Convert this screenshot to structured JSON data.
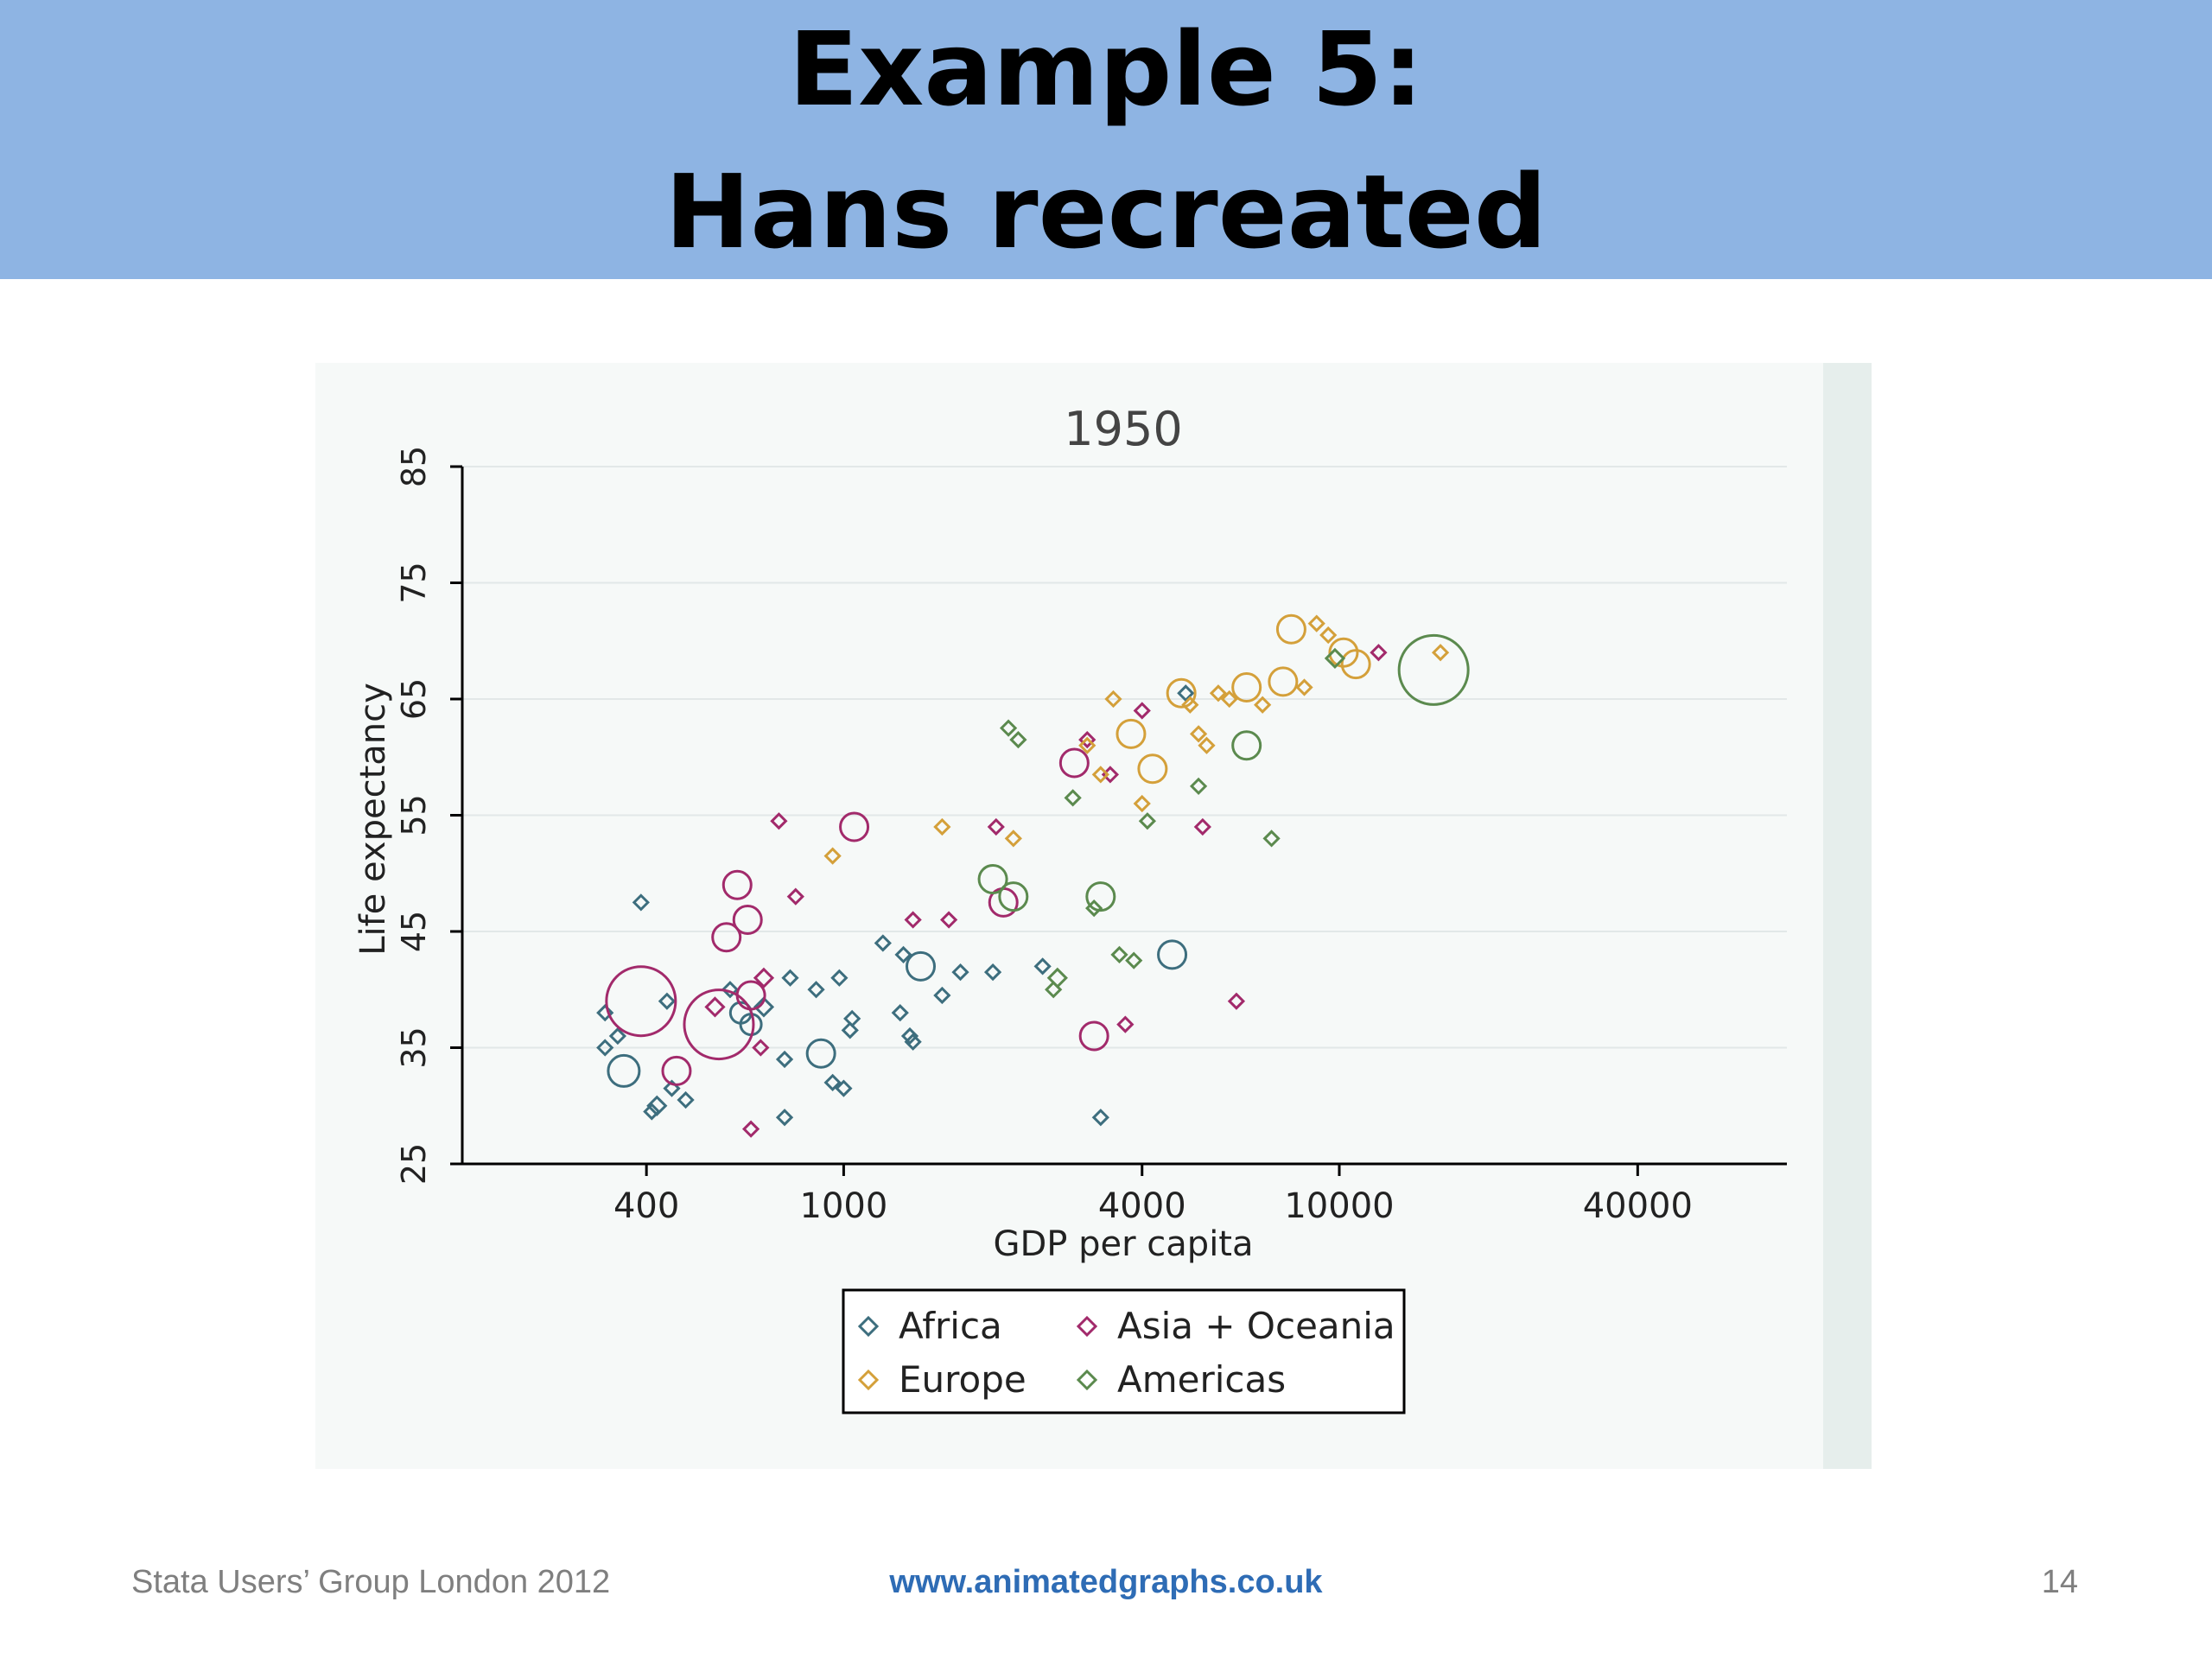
{
  "slide": {
    "title_line1": "Example 5:",
    "title_line2": "Hans recreated",
    "footer_left": "Stata Users’ Group London 2012",
    "footer_center": "www.animatedgraphs.co.uk",
    "page_number": "14"
  },
  "chart_data": {
    "type": "scatter",
    "title": "1950",
    "xlabel": "GDP per capita",
    "ylabel": "Life expectancy",
    "x_scale": "log",
    "xlim": [
      170,
      80000
    ],
    "ylim": [
      25,
      85
    ],
    "x_ticks": [
      400,
      1000,
      4000,
      10000,
      40000
    ],
    "y_ticks": [
      25,
      35,
      45,
      55,
      65,
      75,
      85
    ],
    "grid": "horizontal",
    "legend_position": "bottom",
    "series": [
      {
        "name": "Africa",
        "color": "#3d6e7e",
        "points": [
          {
            "x": 330,
            "y": 38,
            "size": 6
          },
          {
            "x": 330,
            "y": 35,
            "size": 6
          },
          {
            "x": 350,
            "y": 36,
            "size": 6
          },
          {
            "x": 360,
            "y": 33,
            "size": 18
          },
          {
            "x": 390,
            "y": 47.5,
            "size": 6
          },
          {
            "x": 420,
            "y": 30,
            "size": 8
          },
          {
            "x": 410,
            "y": 29.5,
            "size": 6
          },
          {
            "x": 440,
            "y": 39,
            "size": 6
          },
          {
            "x": 450,
            "y": 31.5,
            "size": 6
          },
          {
            "x": 480,
            "y": 30.5,
            "size": 6
          },
          {
            "x": 590,
            "y": 40,
            "size": 6
          },
          {
            "x": 620,
            "y": 38,
            "size": 12
          },
          {
            "x": 650,
            "y": 37,
            "size": 12
          },
          {
            "x": 690,
            "y": 38.5,
            "size": 8
          },
          {
            "x": 760,
            "y": 34,
            "size": 6
          },
          {
            "x": 780,
            "y": 41,
            "size": 6
          },
          {
            "x": 760,
            "y": 29,
            "size": 6
          },
          {
            "x": 880,
            "y": 40,
            "size": 6
          },
          {
            "x": 900,
            "y": 34.5,
            "size": 16
          },
          {
            "x": 950,
            "y": 32,
            "size": 6
          },
          {
            "x": 980,
            "y": 41,
            "size": 6
          },
          {
            "x": 1000,
            "y": 31.5,
            "size": 6
          },
          {
            "x": 1040,
            "y": 37.5,
            "size": 6
          },
          {
            "x": 1030,
            "y": 36.5,
            "size": 6
          },
          {
            "x": 1200,
            "y": 44,
            "size": 6
          },
          {
            "x": 1300,
            "y": 38,
            "size": 6
          },
          {
            "x": 1320,
            "y": 43,
            "size": 6
          },
          {
            "x": 1380,
            "y": 35.5,
            "size": 6
          },
          {
            "x": 1430,
            "y": 42,
            "size": 16
          },
          {
            "x": 1360,
            "y": 36,
            "size": 6
          },
          {
            "x": 1580,
            "y": 39.5,
            "size": 6
          },
          {
            "x": 1720,
            "y": 41.5,
            "size": 6
          },
          {
            "x": 2000,
            "y": 41.5,
            "size": 6
          },
          {
            "x": 2520,
            "y": 42,
            "size": 6
          },
          {
            "x": 3300,
            "y": 29,
            "size": 6
          },
          {
            "x": 4600,
            "y": 43,
            "size": 16
          },
          {
            "x": 4900,
            "y": 65.5,
            "size": 6
          }
        ]
      },
      {
        "name": "Asia + Oceania",
        "color": "#a22a6b",
        "points": [
          {
            "x": 390,
            "y": 39,
            "size": 40
          },
          {
            "x": 460,
            "y": 33,
            "size": 16
          },
          {
            "x": 560,
            "y": 37,
            "size": 40
          },
          {
            "x": 550,
            "y": 38.5,
            "size": 8
          },
          {
            "x": 580,
            "y": 44.5,
            "size": 16
          },
          {
            "x": 610,
            "y": 49,
            "size": 16
          },
          {
            "x": 640,
            "y": 46,
            "size": 16
          },
          {
            "x": 650,
            "y": 39.5,
            "size": 16
          },
          {
            "x": 650,
            "y": 28,
            "size": 6
          },
          {
            "x": 690,
            "y": 41,
            "size": 8
          },
          {
            "x": 680,
            "y": 35,
            "size": 6
          },
          {
            "x": 740,
            "y": 54.5,
            "size": 6
          },
          {
            "x": 800,
            "y": 48,
            "size": 6
          },
          {
            "x": 1050,
            "y": 54,
            "size": 16
          },
          {
            "x": 1380,
            "y": 46,
            "size": 6
          },
          {
            "x": 1630,
            "y": 46,
            "size": 6
          },
          {
            "x": 2030,
            "y": 54,
            "size": 6
          },
          {
            "x": 2100,
            "y": 47.5,
            "size": 16
          },
          {
            "x": 2920,
            "y": 59.5,
            "size": 16
          },
          {
            "x": 3100,
            "y": 61.5,
            "size": 6
          },
          {
            "x": 3200,
            "y": 36,
            "size": 16
          },
          {
            "x": 3450,
            "y": 58.5,
            "size": 6
          },
          {
            "x": 3700,
            "y": 37,
            "size": 6
          },
          {
            "x": 4000,
            "y": 64,
            "size": 6
          },
          {
            "x": 5300,
            "y": 54,
            "size": 6
          },
          {
            "x": 6200,
            "y": 39,
            "size": 6
          },
          {
            "x": 12000,
            "y": 69,
            "size": 6
          }
        ]
      },
      {
        "name": "Europe",
        "color": "#d4a03a",
        "points": [
          {
            "x": 950,
            "y": 51.5,
            "size": 6
          },
          {
            "x": 1580,
            "y": 54,
            "size": 6
          },
          {
            "x": 2200,
            "y": 53,
            "size": 6
          },
          {
            "x": 3100,
            "y": 61,
            "size": 6
          },
          {
            "x": 3300,
            "y": 58.5,
            "size": 6
          },
          {
            "x": 3500,
            "y": 65,
            "size": 6
          },
          {
            "x": 3800,
            "y": 62,
            "size": 16
          },
          {
            "x": 4000,
            "y": 56,
            "size": 6
          },
          {
            "x": 4200,
            "y": 59,
            "size": 16
          },
          {
            "x": 4800,
            "y": 65.5,
            "size": 16
          },
          {
            "x": 5000,
            "y": 64.5,
            "size": 6
          },
          {
            "x": 5200,
            "y": 62,
            "size": 6
          },
          {
            "x": 5400,
            "y": 61,
            "size": 6
          },
          {
            "x": 5700,
            "y": 65.5,
            "size": 6
          },
          {
            "x": 6000,
            "y": 65,
            "size": 6
          },
          {
            "x": 6500,
            "y": 66,
            "size": 16
          },
          {
            "x": 7000,
            "y": 64.5,
            "size": 6
          },
          {
            "x": 7700,
            "y": 66.5,
            "size": 16
          },
          {
            "x": 8000,
            "y": 71,
            "size": 16
          },
          {
            "x": 8500,
            "y": 66,
            "size": 6
          },
          {
            "x": 9000,
            "y": 71.5,
            "size": 6
          },
          {
            "x": 9500,
            "y": 70.5,
            "size": 6
          },
          {
            "x": 10200,
            "y": 69,
            "size": 16
          },
          {
            "x": 10800,
            "y": 68,
            "size": 16
          },
          {
            "x": 16000,
            "y": 69,
            "size": 6
          }
        ]
      },
      {
        "name": "Americas",
        "color": "#5b8a4e",
        "points": [
          {
            "x": 2000,
            "y": 49.5,
            "size": 16
          },
          {
            "x": 2200,
            "y": 48,
            "size": 16
          },
          {
            "x": 2150,
            "y": 62.5,
            "size": 6
          },
          {
            "x": 2250,
            "y": 61.5,
            "size": 6
          },
          {
            "x": 2650,
            "y": 40,
            "size": 6
          },
          {
            "x": 2700,
            "y": 41,
            "size": 8
          },
          {
            "x": 2900,
            "y": 56.5,
            "size": 6
          },
          {
            "x": 3300,
            "y": 48,
            "size": 16
          },
          {
            "x": 3200,
            "y": 47,
            "size": 6
          },
          {
            "x": 3600,
            "y": 43,
            "size": 6
          },
          {
            "x": 3850,
            "y": 42.5,
            "size": 6
          },
          {
            "x": 4100,
            "y": 54.5,
            "size": 6
          },
          {
            "x": 5200,
            "y": 57.5,
            "size": 6
          },
          {
            "x": 6500,
            "y": 61,
            "size": 16
          },
          {
            "x": 7300,
            "y": 53,
            "size": 6
          },
          {
            "x": 9800,
            "y": 68.5,
            "size": 8
          },
          {
            "x": 15500,
            "y": 67.5,
            "size": 40
          }
        ]
      }
    ]
  }
}
